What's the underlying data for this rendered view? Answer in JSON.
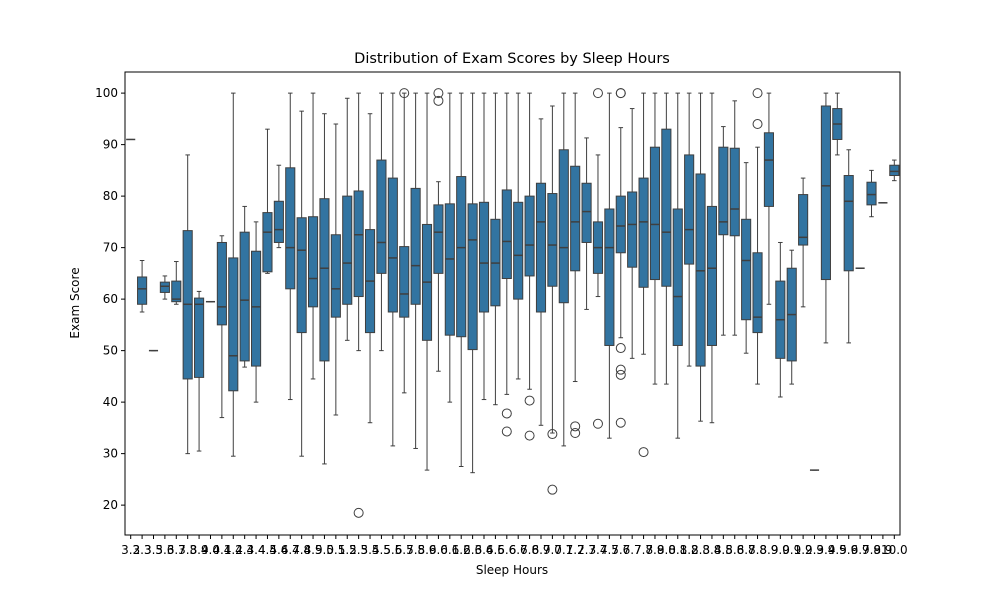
{
  "chart_data": {
    "type": "box",
    "title": "Distribution of Exam Scores by Sleep Hours",
    "x_label": "Sleep Hours",
    "y_label": "Exam Score",
    "color": "#3274a1",
    "ylim": [
      14.2,
      104.1
    ],
    "yticks": [
      20,
      30,
      40,
      50,
      60,
      70,
      80,
      90,
      100
    ],
    "categories": [
      "3.2",
      "3.3",
      "3.5",
      "3.6",
      "3.7",
      "3.8",
      "3.9",
      "4.0",
      "4.1",
      "4.2",
      "4.3",
      "4.4",
      "4.5",
      "4.6",
      "4.7",
      "4.8",
      "4.9",
      "5.0",
      "5.1",
      "5.2",
      "5.3",
      "5.4",
      "5.5",
      "5.6",
      "5.7",
      "5.8",
      "5.9",
      "6.0",
      "6.1",
      "6.2",
      "6.3",
      "6.4",
      "6.5",
      "6.6",
      "6.7",
      "6.8",
      "6.9",
      "7.0",
      "7.1",
      "7.2",
      "7.3",
      "7.4",
      "7.5",
      "7.6",
      "7.7",
      "7.8",
      "7.9",
      "8.0",
      "8.1",
      "8.2",
      "8.3",
      "8.4",
      "8.5",
      "8.6",
      "8.7",
      "8.8",
      "8.9",
      "9.0",
      "9.1",
      "9.2",
      "9.3",
      "9.4",
      "9.5",
      "9.6",
      "9.7",
      "9.8",
      "9.9",
      "10.0"
    ],
    "whislo": [
      91,
      57.5,
      50,
      60,
      59,
      30,
      30.5,
      59.5,
      37,
      29.5,
      46.8,
      40,
      65,
      70,
      40.5,
      29.5,
      44.5,
      28,
      37.5,
      52,
      50,
      36,
      50,
      31.5,
      41.8,
      31,
      26.8,
      46,
      40,
      27.5,
      26.3,
      40.5,
      39.5,
      41.5,
      44.5,
      42.5,
      35.5,
      34,
      31.5,
      44,
      58,
      60.5,
      33,
      52.5,
      48.5,
      49.3,
      43.5,
      43.5,
      33,
      47,
      36.3,
      36,
      53,
      53,
      49.5,
      43.5,
      59,
      41,
      43.5,
      58.5,
      26.8,
      51.5,
      88,
      51.5,
      66,
      76,
      78.7,
      83
    ],
    "q1": [
      91,
      59,
      50,
      61.3,
      59.5,
      44.5,
      44.8,
      59.5,
      55,
      42.2,
      48,
      47,
      65.3,
      71,
      62,
      53.5,
      58.5,
      48,
      56.5,
      59,
      60.5,
      53.5,
      65,
      57.5,
      56.5,
      59,
      52,
      65,
      53,
      52.7,
      50.2,
      57.5,
      58.7,
      64,
      60,
      64.5,
      57.5,
      62.5,
      59.3,
      65.5,
      71,
      65,
      51,
      69,
      66.2,
      62.3,
      63.8,
      62.5,
      51,
      66.8,
      47,
      51,
      72.5,
      72.3,
      56,
      53.5,
      78,
      48.5,
      48,
      70.5,
      26.8,
      63.8,
      91,
      65.5,
      66,
      78.3,
      78.7,
      84
    ],
    "median": [
      91,
      62,
      50,
      62.5,
      60,
      59,
      59,
      59.5,
      58.5,
      49,
      59.8,
      58.5,
      73,
      73.5,
      70,
      69.5,
      64,
      66,
      62,
      67,
      72.5,
      63.5,
      71,
      68,
      61,
      66.5,
      63.3,
      73,
      67.8,
      70,
      71.5,
      67,
      67,
      71.2,
      68.5,
      70.5,
      75,
      70.5,
      70,
      75,
      77,
      70,
      70,
      74.2,
      74.5,
      75,
      74.5,
      73,
      60.5,
      73.5,
      65.5,
      66,
      75,
      77.5,
      67.5,
      56.5,
      87,
      56,
      57,
      72,
      26.8,
      82,
      94,
      79,
      66,
      80.3,
      78.7,
      84.8
    ],
    "q3": [
      91,
      64.3,
      50,
      63.3,
      63.5,
      73.3,
      60.2,
      59.5,
      71,
      68,
      73,
      69.3,
      76.8,
      79,
      85.5,
      75.8,
      76,
      79.5,
      72.5,
      80,
      81,
      73.5,
      87,
      83.5,
      70.2,
      81.5,
      74.5,
      78.3,
      78.5,
      83.8,
      78.5,
      78.8,
      75.5,
      81.2,
      78.8,
      80,
      82.5,
      80.5,
      89,
      85.8,
      82.5,
      75,
      77.5,
      80,
      80.8,
      83.5,
      89.5,
      93,
      77.5,
      88,
      84.3,
      78,
      89.5,
      89.3,
      75.5,
      69,
      92.3,
      63.5,
      66,
      80.3,
      26.8,
      97.5,
      97,
      84,
      66,
      82.7,
      78.7,
      86
    ],
    "whishi": [
      91,
      67.5,
      50,
      64.5,
      67.3,
      88,
      61.5,
      59.5,
      72.3,
      100,
      78,
      75,
      93,
      86,
      100,
      96.5,
      100,
      96,
      94,
      99,
      100,
      96,
      100,
      100,
      100,
      100,
      100,
      82.8,
      100,
      100,
      100,
      100,
      100,
      100,
      100,
      100,
      95,
      97.5,
      100,
      100,
      91.3,
      88,
      100,
      93.3,
      97,
      100,
      100,
      100,
      100,
      100,
      100,
      100,
      93.5,
      98.5,
      86.5,
      89.5,
      100,
      71,
      69.5,
      83.5,
      26.8,
      100,
      100,
      89,
      66,
      85,
      78.7,
      87
    ],
    "fliers": [
      [],
      [],
      [],
      [],
      [],
      [],
      [],
      [],
      [],
      [],
      [],
      [],
      [],
      [],
      [],
      [],
      [],
      [],
      [],
      [],
      [
        18.5
      ],
      [],
      [],
      [],
      [
        100
      ],
      [],
      [],
      [
        100,
        98.5
      ],
      [],
      [],
      [],
      [],
      [],
      [
        37.8,
        34.3
      ],
      [],
      [
        40.3,
        33.5
      ],
      [],
      [
        33.8,
        23
      ],
      [],
      [
        35.3,
        34
      ],
      [],
      [
        100,
        35.8
      ],
      [],
      [
        100,
        100,
        50.5,
        46.3,
        45.3,
        36
      ],
      [],
      [
        30.3
      ],
      [],
      [],
      [],
      [],
      [],
      [],
      [],
      [],
      [],
      [
        100,
        94
      ],
      [],
      [],
      [],
      [],
      [],
      [],
      [],
      [],
      [],
      [],
      [],
      []
    ]
  }
}
